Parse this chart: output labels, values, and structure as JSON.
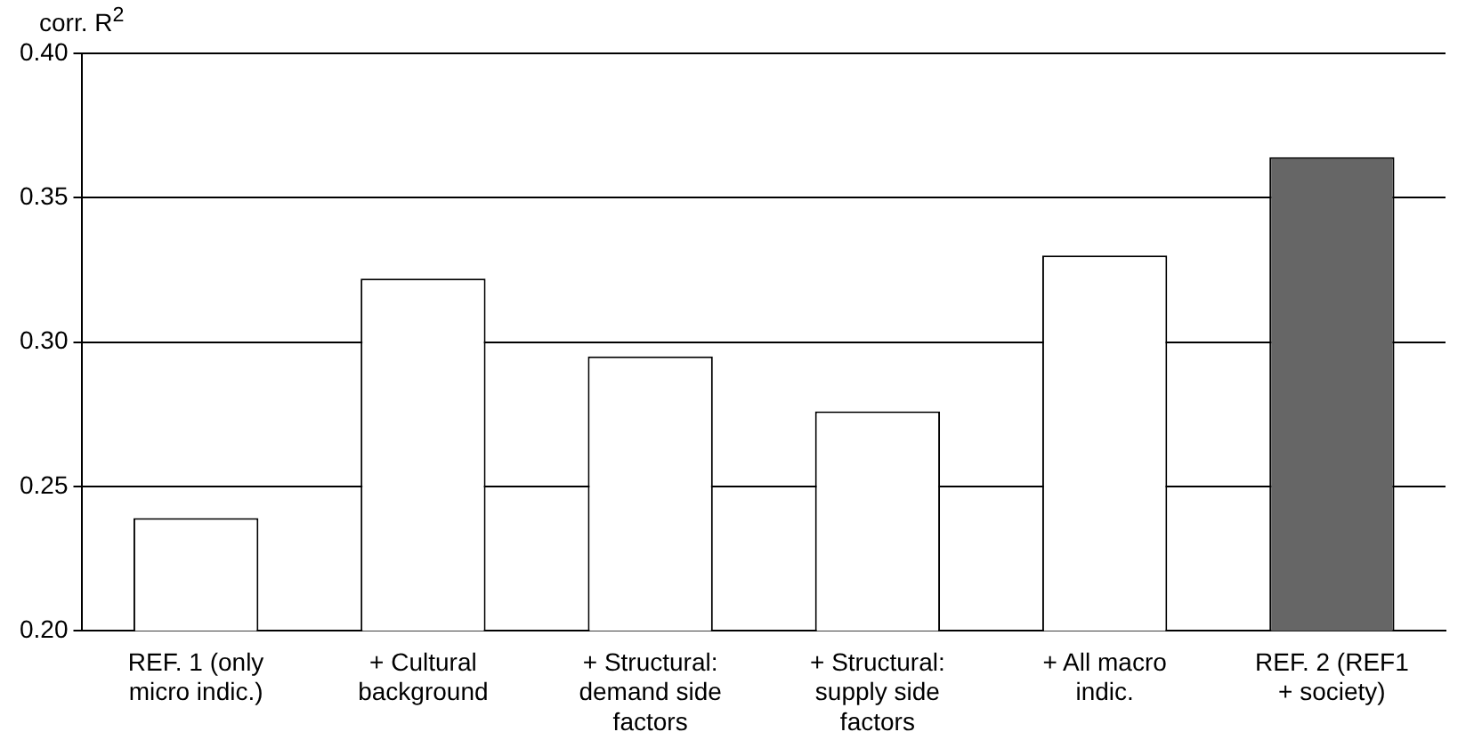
{
  "chart_data": {
    "type": "bar",
    "ylabel": "corr. R$^{2}$",
    "categories": [
      "REF. 1 (only\nmicro indic.)",
      "+ Cultural\nbackground",
      "+ Structural:\ndemand side\nfactors",
      "+ Structural:\nsupply side\nfactors",
      "+ All macro\nindic.",
      "REF. 2 (REF1\n+ society)"
    ],
    "values": [
      0.239,
      0.322,
      0.295,
      0.276,
      0.33,
      0.364
    ],
    "colors": [
      "#ffffff",
      "#ffffff",
      "#ffffff",
      "#ffffff",
      "#ffffff",
      "#666666"
    ],
    "ylim": [
      0.2,
      0.4
    ],
    "yticks": [
      {
        "value": 0.2,
        "label": "0.20"
      },
      {
        "value": 0.25,
        "label": "0.25"
      },
      {
        "value": 0.3,
        "label": "0.30"
      },
      {
        "value": 0.35,
        "label": "0.35"
      },
      {
        "value": 0.4,
        "label": "0.40"
      }
    ],
    "grid": "y",
    "legend": false
  }
}
